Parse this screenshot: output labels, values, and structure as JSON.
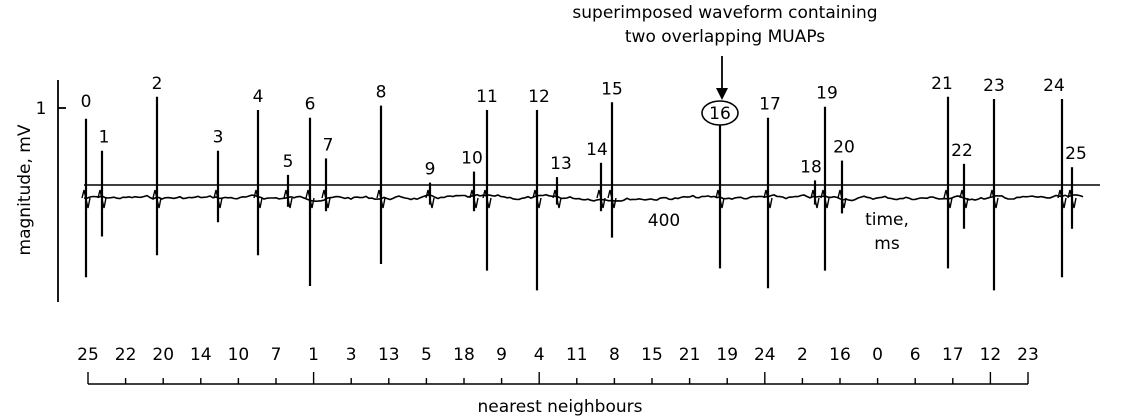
{
  "chart_data": {
    "type": "line",
    "title": "",
    "ylabel": "magnitude, mV",
    "y_tick_label": "1",
    "x_axis_label_line1": "time,",
    "x_axis_label_line2": "ms",
    "x_tick_label": "400",
    "annotation": {
      "line1": "superimposed waveform containing",
      "line2": "two overlapping MUAPs",
      "circled_label": "16"
    },
    "spikes": [
      {
        "label": "0",
        "up": 0.72,
        "down": 0.72
      },
      {
        "label": "1",
        "up": 0.43,
        "down": 0.35
      },
      {
        "label": "2",
        "up": 0.92,
        "down": 0.52
      },
      {
        "label": "3",
        "up": 0.43,
        "down": 0.22
      },
      {
        "label": "4",
        "up": 0.8,
        "down": 0.52
      },
      {
        "label": "5",
        "up": 0.21,
        "down": 0.08
      },
      {
        "label": "6",
        "up": 0.73,
        "down": 0.8
      },
      {
        "label": "7",
        "up": 0.36,
        "down": 0.12
      },
      {
        "label": "8",
        "up": 0.84,
        "down": 0.6
      },
      {
        "label": "9",
        "up": 0.14,
        "down": 0.06
      },
      {
        "label": "10",
        "up": 0.24,
        "down": 0.12
      },
      {
        "label": "11",
        "up": 0.8,
        "down": 0.66
      },
      {
        "label": "12",
        "up": 0.8,
        "down": 0.84
      },
      {
        "label": "13",
        "up": 0.19,
        "down": 0.06
      },
      {
        "label": "14",
        "up": 0.32,
        "down": 0.12
      },
      {
        "label": "15",
        "up": 0.87,
        "down": 0.36
      },
      {
        "label": "16",
        "up": 0.66,
        "down": 0.64
      },
      {
        "label": "17",
        "up": 0.73,
        "down": 0.82
      },
      {
        "label": "18",
        "up": 0.16,
        "down": 0.06
      },
      {
        "label": "19",
        "up": 0.83,
        "down": 0.66
      },
      {
        "label": "20",
        "up": 0.34,
        "down": 0.14
      },
      {
        "label": "21",
        "up": 0.92,
        "down": 0.64
      },
      {
        "label": "22",
        "up": 0.31,
        "down": 0.28
      },
      {
        "label": "23",
        "up": 0.9,
        "down": 0.84
      },
      {
        "label": "24",
        "up": 0.9,
        "down": 0.72
      },
      {
        "label": "25",
        "up": 0.28,
        "down": 0.28
      }
    ],
    "nearest_neighbours": {
      "label": "nearest neighbours",
      "values": [
        "25",
        "22",
        "20",
        "14",
        "10",
        "7",
        "1",
        "3",
        "13",
        "5",
        "18",
        "9",
        "4",
        "11",
        "8",
        "15",
        "21",
        "19",
        "24",
        "2",
        "16",
        "0",
        "6",
        "17",
        "12",
        "23"
      ]
    }
  }
}
